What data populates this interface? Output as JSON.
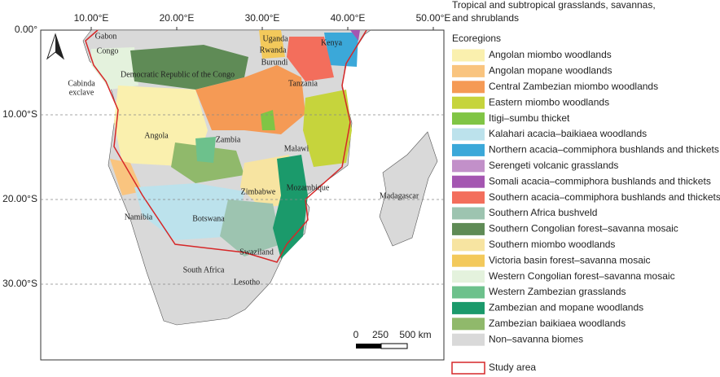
{
  "map": {
    "lon_labels": [
      "10.00°E",
      "20.00°E",
      "30.00°E",
      "40.00°E",
      "50.00°E"
    ],
    "lat_labels": [
      "0.00°",
      "10.00°S",
      "20.00°S",
      "30.00°S"
    ],
    "countries": [
      "Gabon",
      "Congo",
      "Democratic Republic of the Congo",
      "Cabinda",
      "exclave",
      "Angola",
      "Zambia",
      "Malawi",
      "Uganda",
      "Kenya",
      "Rwanda",
      "Burundi",
      "Tanzania",
      "Zimbabwe",
      "Mozambique",
      "Madagascar",
      "Namibia",
      "Botswana",
      "Swaziland",
      "South Africa",
      "Lesotho"
    ],
    "scale_bar": [
      "0",
      "250",
      "500 km"
    ]
  },
  "legend": {
    "title": [
      "Tropical and subtropical grasslands, savannas,",
      "and shrublands"
    ],
    "heading": "Ecoregions",
    "items": [
      {
        "label": "Angolan miombo woodlands",
        "color": "#faf0ae"
      },
      {
        "label": "Angolan mopane woodlands",
        "color": "#f9c47f"
      },
      {
        "label": "Central Zambezian miombo woodlands",
        "color": "#f59a55"
      },
      {
        "label": "Eastern miombo woodlands",
        "color": "#c6d43c"
      },
      {
        "label": "Itigi–sumbu thicket",
        "color": "#80c545"
      },
      {
        "label": "Kalahari acacia–baikiaea woodlands",
        "color": "#bce2ec"
      },
      {
        "label": "Northern acacia–commiphora bushlands and thickets",
        "color": "#3ba8d9"
      },
      {
        "label": "Serengeti volcanic grasslands",
        "color": "#c290c9"
      },
      {
        "label": "Somali acacia–commiphora bushlands and thickets",
        "color": "#a456b1"
      },
      {
        "label": "Southern acacia–commiphora bushlands and thickets",
        "color": "#f36e5c"
      },
      {
        "label": "Southern Africa bushveld",
        "color": "#9dc4b0"
      },
      {
        "label": "Southern Congolian forest–savanna mosaic",
        "color": "#5f8b56"
      },
      {
        "label": "Southern miombo woodlands",
        "color": "#f7e4a1"
      },
      {
        "label": "Victoria basin forest–savanna mosaic",
        "color": "#f3c95b"
      },
      {
        "label": "Western Congolian forest–savanna mosaic",
        "color": "#e4f2dd"
      },
      {
        "label": "Western Zambezian grasslands",
        "color": "#6dc18c"
      },
      {
        "label": "Zambezian and mopane woodlands",
        "color": "#1b9a6b"
      },
      {
        "label": "Zambezian baikiaea woodlands",
        "color": "#90b96b"
      },
      {
        "label": "Non–savanna biomes",
        "color": "#d9d9d9"
      }
    ],
    "study_area": {
      "label": "Study area",
      "color": "#d62728"
    }
  }
}
